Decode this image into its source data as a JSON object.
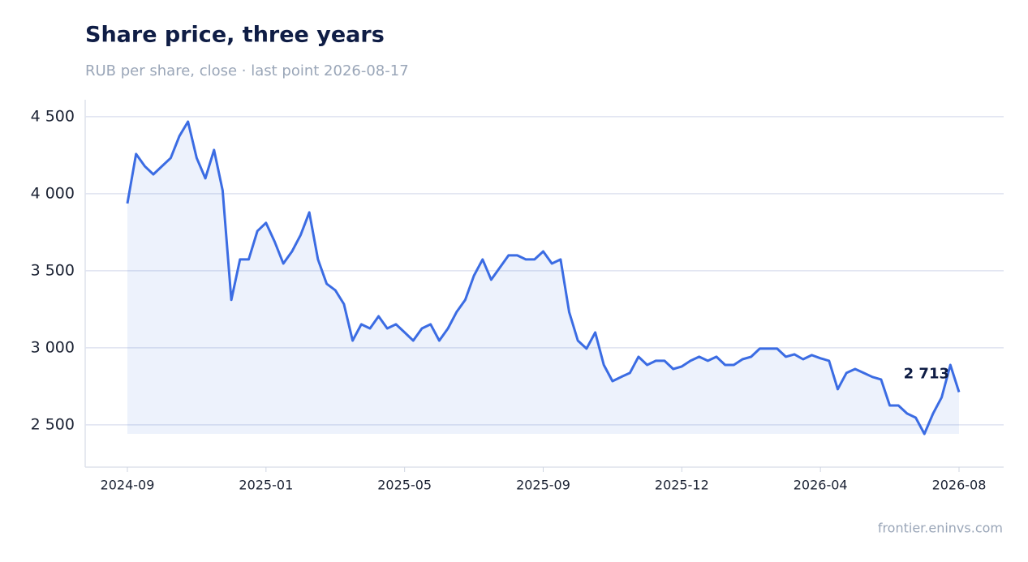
{
  "chart_data": {
    "type": "line",
    "title": "Share price, three years",
    "subtitle": "RUB per share, close · last point 2026-08-17",
    "source": "frontier.eninvs.com",
    "categories": [
      "2024-09",
      null,
      null,
      null,
      null,
      null,
      null,
      null,
      null,
      null,
      null,
      null,
      null,
      null,
      null,
      null,
      "2025-01",
      null,
      null,
      null,
      null,
      null,
      null,
      null,
      null,
      null,
      null,
      null,
      null,
      null,
      null,
      null,
      "2025-05",
      null,
      null,
      null,
      null,
      null,
      null,
      null,
      null,
      null,
      null,
      null,
      null,
      null,
      null,
      null,
      "2025-09",
      null,
      null,
      null,
      null,
      null,
      null,
      null,
      null,
      null,
      null,
      null,
      null,
      null,
      null,
      null,
      "2025-12",
      null,
      null,
      null,
      null,
      null,
      null,
      null,
      null,
      null,
      null,
      null,
      null,
      null,
      null,
      null,
      "2026-04",
      null,
      null,
      null,
      null,
      null,
      null,
      null,
      null,
      null,
      null,
      null,
      null,
      null,
      null,
      null,
      "2026-08"
    ],
    "series": [
      {
        "name": "Share price",
        "color": "#3b6ce3",
        "values": [
          3937,
          4258,
          4179,
          4126,
          4179,
          4232,
          4374,
          4468,
          4232,
          4100,
          4284,
          4021,
          3311,
          3574,
          3574,
          3758,
          3811,
          3689,
          3547,
          3626,
          3732,
          3879,
          3574,
          3416,
          3374,
          3284,
          3047,
          3153,
          3126,
          3205,
          3126,
          3153,
          3100,
          3047,
          3126,
          3153,
          3047,
          3126,
          3232,
          3311,
          3468,
          3574,
          3442,
          3521,
          3600,
          3600,
          3574,
          3574,
          3626,
          3547,
          3574,
          3232,
          3047,
          2995,
          3100,
          2889,
          2784,
          2811,
          2837,
          2942,
          2889,
          2916,
          2916,
          2863,
          2879,
          2916,
          2942,
          2916,
          2942,
          2889,
          2889,
          2926,
          2942,
          2995,
          2995,
          2995,
          2942,
          2958,
          2926,
          2953,
          2932,
          2916,
          2732,
          2837,
          2863,
          2837,
          2811,
          2795,
          2626,
          2626,
          2574,
          2547,
          2442,
          2574,
          2679,
          2889,
          2713
        ],
        "value_labels": [
          null,
          null,
          null,
          null,
          null,
          null,
          null,
          null,
          null,
          null,
          null,
          null,
          null,
          null,
          null,
          null,
          null,
          null,
          null,
          null,
          null,
          null,
          null,
          null,
          null,
          null,
          null,
          null,
          null,
          null,
          null,
          null,
          null,
          null,
          null,
          null,
          null,
          null,
          null,
          null,
          null,
          null,
          null,
          null,
          null,
          null,
          null,
          null,
          null,
          null,
          null,
          null,
          null,
          null,
          null,
          null,
          null,
          null,
          null,
          null,
          null,
          null,
          null,
          null,
          null,
          null,
          null,
          null,
          null,
          null,
          null,
          null,
          null,
          null,
          null,
          null,
          null,
          null,
          null,
          null,
          null,
          null,
          null,
          null,
          null,
          null,
          null,
          null,
          null,
          null,
          null,
          null,
          null,
          null,
          null,
          null,
          "2 713"
        ]
      }
    ],
    "ylim": [
      2226,
      4610
    ],
    "yticks": [
      {
        "value": 2500,
        "label": "2 500"
      },
      {
        "value": 3000,
        "label": "3 000"
      },
      {
        "value": 3500,
        "label": "3 500"
      },
      {
        "value": 4000,
        "label": "4 000"
      },
      {
        "value": 4500,
        "label": "4 500"
      }
    ],
    "grid": true
  }
}
